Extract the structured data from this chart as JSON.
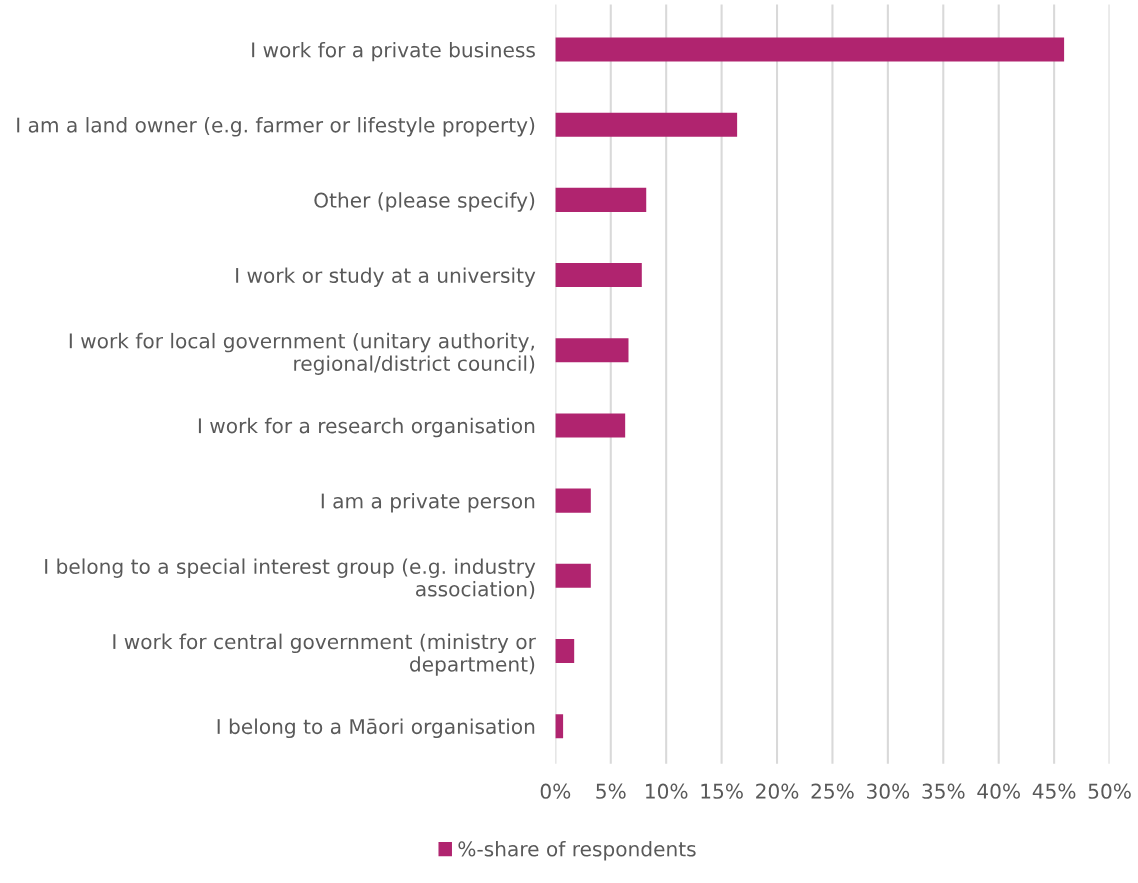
{
  "chart_data": {
    "type": "bar",
    "orientation": "horizontal",
    "categories": [
      "I work for a private business",
      "I am a land owner (e.g. farmer or lifestyle property)",
      "Other (please specify)",
      "I work or study at a university",
      "I work for local government (unitary authority,\nregional/district council)",
      "I work for a research organisation",
      "I am a private person",
      "I belong to a special interest group (e.g. industry\nassociation)",
      "I work for central government (ministry or\ndepartment)",
      "I belong to a Māori organisation"
    ],
    "series": [
      {
        "name": "%-share of respondents",
        "color": "#b0246f",
        "values": [
          45.9,
          16.4,
          8.2,
          7.8,
          6.6,
          6.3,
          3.2,
          3.2,
          1.7,
          0.7
        ]
      }
    ],
    "xlim": [
      0,
      50
    ],
    "xticks": [
      {
        "value": 0,
        "label": "0%"
      },
      {
        "value": 5,
        "label": "5%"
      },
      {
        "value": 10,
        "label": "10%"
      },
      {
        "value": 15,
        "label": "15%"
      },
      {
        "value": 20,
        "label": "20%"
      },
      {
        "value": 25,
        "label": "25%"
      },
      {
        "value": 30,
        "label": "30%"
      },
      {
        "value": 35,
        "label": "35%"
      },
      {
        "value": 40,
        "label": "40%"
      },
      {
        "value": 45,
        "label": "45%"
      },
      {
        "value": 50,
        "label": "50%"
      }
    ],
    "grid": "x",
    "legend": "bottom"
  }
}
